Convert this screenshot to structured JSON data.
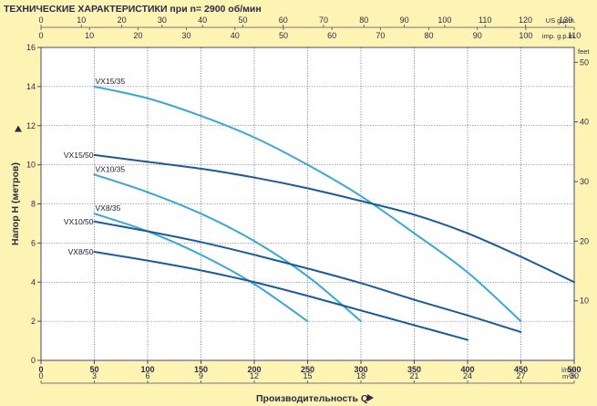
{
  "chart_data": {
    "type": "line",
    "title": "ТЕХНИЧЕСКИЕ ХАРАКТЕРИСТИКИ при n= 2900 об/мин",
    "ylabel": "Напор H   (метров)",
    "xlabel": "Производительность  Q",
    "y_left": {
      "range": [
        0,
        16
      ],
      "ticks": [
        0,
        2,
        4,
        6,
        8,
        10,
        12,
        14,
        16
      ]
    },
    "y_right": {
      "unit": "feet",
      "ticks": [
        10,
        20,
        30,
        40,
        50
      ]
    },
    "x_bottom_lmin": {
      "unit": "l/min",
      "range": [
        0,
        500
      ],
      "ticks": [
        0,
        50,
        100,
        150,
        200,
        250,
        300,
        350,
        400,
        450,
        500
      ]
    },
    "x_bottom_m3h": {
      "unit": "m³/h",
      "ticks": [
        0,
        3,
        6,
        9,
        12,
        15,
        18,
        21,
        24,
        27,
        30
      ]
    },
    "x_top_usgpm": {
      "unit": "US g.p.m.",
      "ticks": [
        0,
        10,
        20,
        30,
        40,
        50,
        60,
        70,
        80,
        90,
        100,
        110,
        120,
        130
      ]
    },
    "x_top_impgpm": {
      "unit": "imp. g.p.m.",
      "ticks": [
        0,
        10,
        20,
        30,
        40,
        50,
        60,
        70,
        80,
        90,
        100,
        110
      ]
    },
    "grid": true,
    "series": [
      {
        "name": "VX15/35",
        "color": "#38a8d8",
        "labelValign": "bottom",
        "points": [
          [
            50,
            14.0
          ],
          [
            100,
            13.4
          ],
          [
            150,
            12.5
          ],
          [
            200,
            11.4
          ],
          [
            250,
            10.0
          ],
          [
            300,
            8.4
          ],
          [
            350,
            6.5
          ],
          [
            400,
            4.5
          ],
          [
            450,
            2.0
          ]
        ]
      },
      {
        "name": "VX15/50",
        "color": "#1a5a9a",
        "labelValign": "middle",
        "points": [
          [
            50,
            10.5
          ],
          [
            100,
            10.15
          ],
          [
            150,
            9.8
          ],
          [
            200,
            9.35
          ],
          [
            250,
            8.8
          ],
          [
            300,
            8.15
          ],
          [
            350,
            7.45
          ],
          [
            400,
            6.5
          ],
          [
            450,
            5.3
          ],
          [
            500,
            4.0
          ]
        ]
      },
      {
        "name": "VX10/35",
        "color": "#38a8d8",
        "labelValign": "bottom",
        "points": [
          [
            50,
            9.5
          ],
          [
            100,
            8.6
          ],
          [
            150,
            7.5
          ],
          [
            200,
            6.1
          ],
          [
            250,
            4.3
          ],
          [
            300,
            2.0
          ]
        ]
      },
      {
        "name": "VX8/35",
        "color": "#38a8d8",
        "labelValign": "bottom",
        "points": [
          [
            50,
            7.5
          ],
          [
            100,
            6.6
          ],
          [
            150,
            5.4
          ],
          [
            200,
            3.9
          ],
          [
            250,
            2.0
          ]
        ]
      },
      {
        "name": "VX10/50",
        "color": "#1a5a9a",
        "labelValign": "middle",
        "points": [
          [
            50,
            7.1
          ],
          [
            100,
            6.6
          ],
          [
            150,
            6.05
          ],
          [
            200,
            5.4
          ],
          [
            250,
            4.7
          ],
          [
            300,
            3.95
          ],
          [
            350,
            3.1
          ],
          [
            400,
            2.3
          ],
          [
            450,
            1.45
          ]
        ]
      },
      {
        "name": "VX8/50",
        "color": "#1a5a9a",
        "labelValign": "middle",
        "points": [
          [
            50,
            5.55
          ],
          [
            100,
            5.1
          ],
          [
            150,
            4.6
          ],
          [
            200,
            4.0
          ],
          [
            250,
            3.3
          ],
          [
            300,
            2.55
          ],
          [
            350,
            1.8
          ],
          [
            400,
            1.05
          ]
        ]
      }
    ]
  }
}
